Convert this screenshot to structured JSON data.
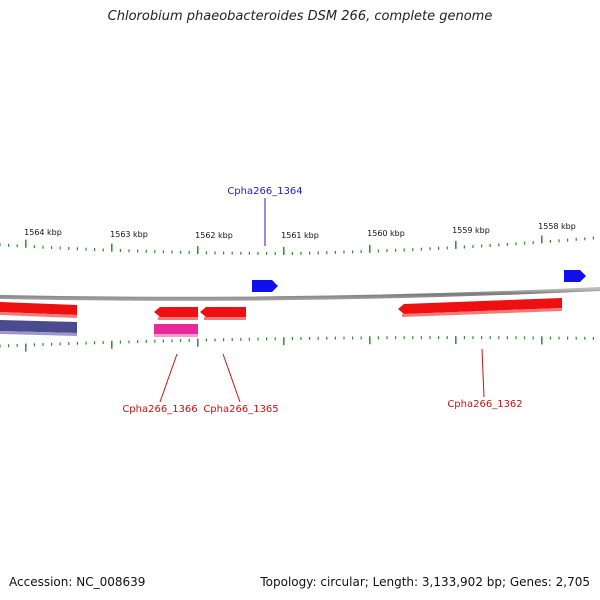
{
  "title": "Chlorobium phaeobacteroides DSM 266, complete genome",
  "footer": {
    "accession": "Accession: NC_008639",
    "topology": "Topology: circular; Length: 3,133,902 bp; Genes: 2,705"
  },
  "colors": {
    "background": "#ffffff",
    "backbone": "#8a8a8a",
    "tick": "#2e8b2e",
    "forward_gene": "#1010ee",
    "reverse_gene": "#ee1010",
    "pink_feature": "#e8299b",
    "purple_feature": "#4b4a8c",
    "forward_label": "#1f1fbf",
    "reverse_label": "#cc1111"
  },
  "scale_labels": [
    "1564 kbp",
    "1563 kbp",
    "1562 kbp",
    "1561 kbp",
    "1560 kbp",
    "1559 kbp",
    "1558 kbp"
  ],
  "genes": [
    {
      "label": "Cpha266_1364",
      "strand": "forward"
    },
    {
      "label": "Cpha266_1366",
      "strand": "reverse"
    },
    {
      "label": "Cpha266_1365",
      "strand": "reverse"
    },
    {
      "label": "Cpha266_1362",
      "strand": "reverse"
    }
  ]
}
